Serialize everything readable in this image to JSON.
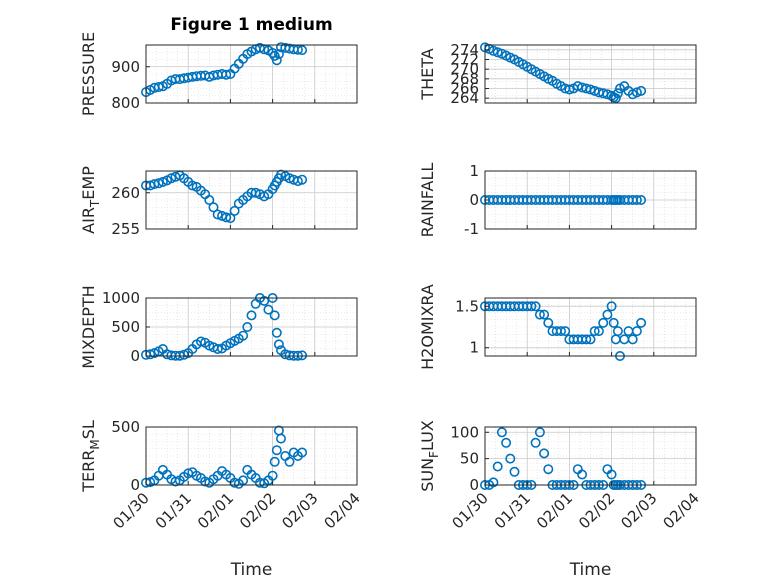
{
  "figure": {
    "title": "Figure 1 medium",
    "xlabel": "Time",
    "date_ticks": [
      "01/30",
      "01/31",
      "02/01",
      "02/02",
      "02/03",
      "02/04"
    ],
    "series_color": "#0072BD"
  },
  "chart_data": [
    {
      "type": "scatter",
      "panel": 1,
      "title": "Figure 1 medium",
      "ylabel": "PRESSURE",
      "ylim": [
        800,
        960
      ],
      "yticks": [
        800,
        900
      ],
      "xlim": [
        "01/30",
        "02/04"
      ],
      "grid": true,
      "x_days": [
        0,
        0.1,
        0.2,
        0.3,
        0.4,
        0.5,
        0.6,
        0.7,
        0.8,
        0.9,
        1,
        1.1,
        1.2,
        1.3,
        1.4,
        1.5,
        1.6,
        1.7,
        1.8,
        1.9,
        2,
        2.1,
        2.2,
        2.3,
        2.4,
        2.5,
        2.6,
        2.7,
        2.8,
        2.9,
        3,
        3.05,
        3.1,
        3.15,
        3.2,
        3.3,
        3.4,
        3.5,
        3.6,
        3.7
      ],
      "y": [
        830,
        836,
        842,
        844,
        846,
        853,
        862,
        866,
        866,
        868,
        870,
        872,
        874,
        875,
        876,
        872,
        876,
        878,
        880,
        878,
        880,
        895,
        908,
        922,
        935,
        942,
        948,
        952,
        948,
        945,
        938,
        930,
        918,
        935,
        954,
        952,
        950,
        948,
        947,
        946
      ]
    },
    {
      "type": "scatter",
      "panel": 2,
      "ylabel": "THETA",
      "ylim": [
        263,
        275
      ],
      "yticks": [
        264,
        266,
        268,
        270,
        272,
        274
      ],
      "xlim": [
        "01/30",
        "02/04"
      ],
      "grid": true,
      "x_days": [
        0,
        0.1,
        0.2,
        0.3,
        0.4,
        0.5,
        0.6,
        0.7,
        0.8,
        0.9,
        1,
        1.1,
        1.2,
        1.3,
        1.4,
        1.5,
        1.6,
        1.7,
        1.8,
        1.9,
        2,
        2.1,
        2.2,
        2.3,
        2.4,
        2.5,
        2.6,
        2.7,
        2.8,
        2.9,
        3,
        3.05,
        3.1,
        3.15,
        3.2,
        3.3,
        3.4,
        3.5,
        3.6,
        3.7
      ],
      "y": [
        274.5,
        274.2,
        273.8,
        273.5,
        273.2,
        272.8,
        272.4,
        272,
        271.5,
        271,
        270.5,
        270,
        269.5,
        269,
        268.5,
        268,
        267.6,
        267,
        266.5,
        266,
        265.8,
        266,
        266.5,
        266.2,
        266,
        265.8,
        265.5,
        265.2,
        265,
        264.8,
        264.5,
        264.2,
        264,
        265,
        266,
        266.5,
        265.5,
        264.8,
        265.2,
        265.5
      ]
    },
    {
      "type": "scatter",
      "panel": 3,
      "ylabel": "AIR_TEMP",
      "ylim": [
        255,
        263
      ],
      "yticks": [
        255,
        260
      ],
      "xlim": [
        "01/30",
        "02/04"
      ],
      "grid": true,
      "x_days": [
        0,
        0.1,
        0.2,
        0.3,
        0.4,
        0.5,
        0.6,
        0.7,
        0.8,
        0.9,
        1,
        1.1,
        1.2,
        1.3,
        1.4,
        1.5,
        1.6,
        1.7,
        1.8,
        1.9,
        2,
        2.1,
        2.2,
        2.3,
        2.4,
        2.5,
        2.6,
        2.7,
        2.8,
        2.9,
        3,
        3.05,
        3.1,
        3.15,
        3.2,
        3.3,
        3.4,
        3.5,
        3.6,
        3.7
      ],
      "y": [
        261,
        261,
        261.2,
        261.3,
        261.5,
        261.7,
        262,
        262.2,
        262.4,
        262,
        261.5,
        261,
        260.8,
        260.3,
        259.8,
        259,
        258,
        257,
        256.8,
        256.6,
        256.5,
        257.5,
        258.5,
        259,
        259.5,
        260,
        260,
        259.8,
        259.5,
        259.8,
        260.5,
        261,
        261.5,
        262,
        262.5,
        262.3,
        262,
        261.8,
        261.6,
        261.8
      ]
    },
    {
      "type": "scatter",
      "panel": 4,
      "ylabel": "RAINFALL",
      "ylim": [
        -1,
        1
      ],
      "yticks": [
        -1,
        0,
        1
      ],
      "xlim": [
        "01/30",
        "02/04"
      ],
      "grid": true,
      "x_days": [
        0,
        0.1,
        0.2,
        0.3,
        0.4,
        0.5,
        0.6,
        0.7,
        0.8,
        0.9,
        1,
        1.1,
        1.2,
        1.3,
        1.4,
        1.5,
        1.6,
        1.7,
        1.8,
        1.9,
        2,
        2.1,
        2.2,
        2.3,
        2.4,
        2.5,
        2.6,
        2.7,
        2.8,
        2.9,
        3,
        3.05,
        3.1,
        3.15,
        3.2,
        3.3,
        3.4,
        3.5,
        3.6,
        3.7
      ],
      "y": [
        0,
        0,
        0,
        0,
        0,
        0,
        0,
        0,
        0,
        0,
        0,
        0,
        0,
        0,
        0,
        0,
        0,
        0,
        0,
        0,
        0,
        0,
        0,
        0,
        0,
        0,
        0,
        0,
        0,
        0,
        0,
        0,
        0,
        0,
        0,
        0,
        0,
        0,
        0,
        0
      ]
    },
    {
      "type": "scatter",
      "panel": 5,
      "ylabel": "MIXDEPTH",
      "ylim": [
        0,
        1000
      ],
      "yticks": [
        0,
        500,
        1000
      ],
      "xlim": [
        "01/30",
        "02/04"
      ],
      "grid": true,
      "x_days": [
        0,
        0.1,
        0.2,
        0.3,
        0.4,
        0.5,
        0.6,
        0.7,
        0.8,
        0.9,
        1,
        1.1,
        1.2,
        1.3,
        1.4,
        1.5,
        1.6,
        1.7,
        1.8,
        1.9,
        2,
        2.1,
        2.2,
        2.3,
        2.4,
        2.5,
        2.6,
        2.7,
        2.8,
        2.9,
        3,
        3.05,
        3.1,
        3.15,
        3.2,
        3.3,
        3.4,
        3.5,
        3.6,
        3.7
      ],
      "y": [
        20,
        30,
        50,
        80,
        120,
        30,
        10,
        5,
        5,
        20,
        50,
        120,
        200,
        250,
        230,
        180,
        150,
        120,
        130,
        180,
        220,
        260,
        300,
        350,
        500,
        700,
        900,
        1000,
        950,
        800,
        1000,
        700,
        400,
        200,
        100,
        30,
        10,
        5,
        5,
        10
      ]
    },
    {
      "type": "scatter",
      "panel": 6,
      "ylabel": "H2OMIXRA",
      "ylim": [
        0.9,
        1.6
      ],
      "yticks": [
        1,
        1.5
      ],
      "xlim": [
        "01/30",
        "02/04"
      ],
      "grid": true,
      "x_days": [
        0,
        0.1,
        0.2,
        0.3,
        0.4,
        0.5,
        0.6,
        0.7,
        0.8,
        0.9,
        1,
        1.1,
        1.2,
        1.3,
        1.4,
        1.5,
        1.6,
        1.7,
        1.8,
        1.9,
        2,
        2.1,
        2.2,
        2.3,
        2.4,
        2.5,
        2.6,
        2.7,
        2.8,
        2.9,
        3,
        3.05,
        3.1,
        3.15,
        3.2,
        3.3,
        3.4,
        3.5,
        3.6,
        3.7
      ],
      "y": [
        1.5,
        1.5,
        1.5,
        1.5,
        1.5,
        1.5,
        1.5,
        1.5,
        1.5,
        1.5,
        1.5,
        1.5,
        1.5,
        1.4,
        1.4,
        1.3,
        1.2,
        1.2,
        1.2,
        1.2,
        1.1,
        1.1,
        1.1,
        1.1,
        1.1,
        1.1,
        1.2,
        1.2,
        1.3,
        1.4,
        1.5,
        1.3,
        1.1,
        1.2,
        0.9,
        1.1,
        1.2,
        1.1,
        1.2,
        1.3
      ]
    },
    {
      "type": "scatter",
      "panel": 7,
      "ylabel": "TERR_MSL",
      "ylim": [
        0,
        500
      ],
      "yticks": [
        0,
        500
      ],
      "xlim": [
        "01/30",
        "02/04"
      ],
      "grid": true,
      "x_days": [
        0,
        0.1,
        0.2,
        0.3,
        0.4,
        0.5,
        0.6,
        0.7,
        0.8,
        0.9,
        1,
        1.1,
        1.2,
        1.3,
        1.4,
        1.5,
        1.6,
        1.7,
        1.8,
        1.9,
        2,
        2.1,
        2.2,
        2.3,
        2.4,
        2.5,
        2.6,
        2.7,
        2.8,
        2.9,
        3,
        3.05,
        3.1,
        3.15,
        3.2,
        3.3,
        3.4,
        3.5,
        3.6,
        3.7
      ],
      "y": [
        20,
        25,
        40,
        80,
        130,
        90,
        50,
        30,
        40,
        70,
        100,
        110,
        80,
        60,
        30,
        20,
        50,
        80,
        120,
        90,
        60,
        20,
        10,
        40,
        130,
        90,
        60,
        20,
        15,
        40,
        80,
        200,
        300,
        470,
        400,
        250,
        200,
        280,
        250,
        280
      ]
    },
    {
      "type": "scatter",
      "panel": 8,
      "ylabel": "SUN_FLUX",
      "ylim": [
        0,
        110
      ],
      "yticks": [
        0,
        50,
        100
      ],
      "xlim": [
        "01/30",
        "02/04"
      ],
      "grid": true,
      "x_days": [
        0,
        0.1,
        0.2,
        0.3,
        0.4,
        0.5,
        0.6,
        0.7,
        0.8,
        0.9,
        1,
        1.1,
        1.2,
        1.3,
        1.4,
        1.5,
        1.6,
        1.7,
        1.8,
        1.9,
        2,
        2.1,
        2.2,
        2.3,
        2.4,
        2.5,
        2.6,
        2.7,
        2.8,
        2.9,
        3,
        3.05,
        3.1,
        3.15,
        3.2,
        3.3,
        3.4,
        3.5,
        3.6,
        3.7
      ],
      "y": [
        0,
        0,
        5,
        35,
        100,
        80,
        50,
        25,
        0,
        0,
        0,
        0,
        80,
        100,
        60,
        30,
        0,
        0,
        0,
        0,
        0,
        0,
        30,
        20,
        0,
        0,
        0,
        0,
        0,
        30,
        20,
        0,
        0,
        0,
        0,
        0,
        0,
        0,
        0,
        0
      ]
    }
  ]
}
